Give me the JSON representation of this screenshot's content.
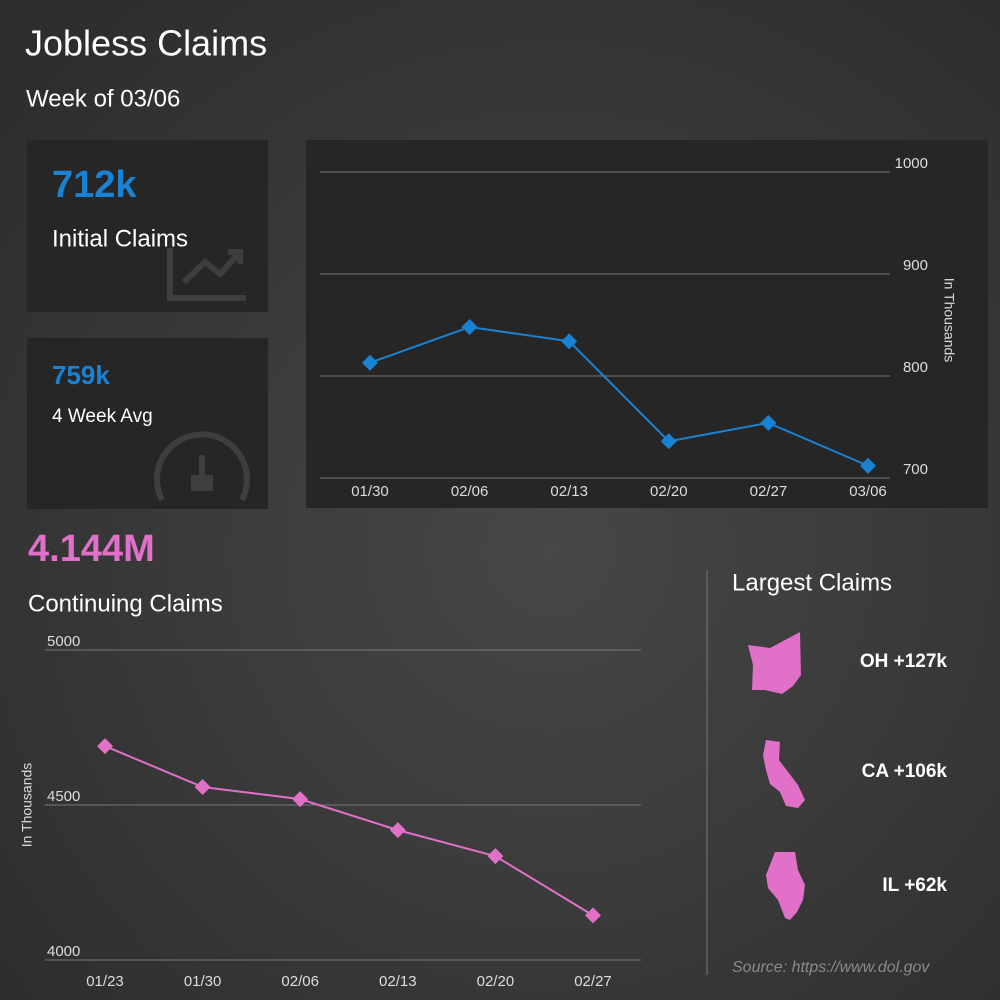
{
  "header": {
    "title": "Jobless Claims",
    "subtitle": "Week of 03/06"
  },
  "cards": [
    {
      "value": "712k",
      "label": "Initial Claims"
    },
    {
      "value": "759k",
      "label": "4 Week Avg"
    },
    {
      "value": "4.144M",
      "label": "Continuing Claims"
    }
  ],
  "chart_data": [
    {
      "type": "line",
      "color": "#1a82d2",
      "y_label": "In Thousands",
      "categories": [
        "01/30",
        "02/06",
        "02/13",
        "02/20",
        "02/27",
        "03/06"
      ],
      "values": [
        813,
        848,
        834,
        736,
        754,
        712
      ],
      "ylim": [
        700,
        1000
      ],
      "yticks": [
        700,
        800,
        900,
        1000
      ],
      "grid": true
    },
    {
      "type": "line",
      "color": "#e070c8",
      "y_label": "In Thousands",
      "categories": [
        "01/23",
        "01/30",
        "02/06",
        "02/13",
        "02/20",
        "02/27"
      ],
      "values": [
        4690,
        4558,
        4519,
        4419,
        4335,
        4144
      ],
      "ylim": [
        4000,
        5000
      ],
      "yticks": [
        4000,
        4500,
        5000
      ],
      "grid": true
    }
  ],
  "largest": {
    "title": "Largest Claims",
    "items": [
      {
        "label": "OH +127k"
      },
      {
        "label": "CA +106k"
      },
      {
        "label": "IL +62k"
      }
    ]
  },
  "source": "Source: https://www.dol.gov"
}
